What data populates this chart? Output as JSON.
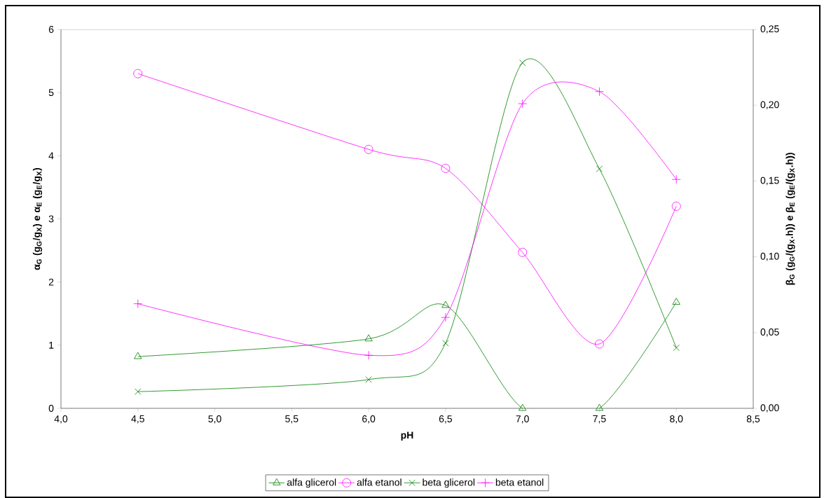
{
  "chart_data": {
    "type": "line",
    "xlabel": "pH",
    "ylabel": "**α$_{G}$ (g$_{G}$/g$_{X}$) e α$_{E}$ (g$_{E}$/g$_{X}$)**",
    "y2label": "**β$_{G}$ (g$_{G}$/(g$_{X}$.h)) e β$_{E}$ (g$_{E}$/(g$_{X}$.h))**",
    "x": [
      4.5,
      6.0,
      6.5,
      7.0,
      7.5,
      8.0
    ],
    "xlim": [
      4.0,
      8.5
    ],
    "xticks": [
      {
        "value": 4.0,
        "label": "4,0"
      },
      {
        "value": 4.5,
        "label": "4,5"
      },
      {
        "value": 5.0,
        "label": "5,0"
      },
      {
        "value": 5.5,
        "label": "5,5"
      },
      {
        "value": 6.0,
        "label": "6,0"
      },
      {
        "value": 6.5,
        "label": "6,5"
      },
      {
        "value": 7.0,
        "label": "7,0"
      },
      {
        "value": 7.5,
        "label": "7,5"
      },
      {
        "value": 8.0,
        "label": "8,0"
      },
      {
        "value": 8.5,
        "label": "8,5"
      }
    ],
    "ylim": [
      0,
      6
    ],
    "yticks": [
      0,
      1,
      2,
      3,
      4,
      5,
      6
    ],
    "y2lim": [
      0,
      0.25
    ],
    "y2ticks": [
      {
        "value": 0.0,
        "label": "0,00"
      },
      {
        "value": 0.05,
        "label": "0,05"
      },
      {
        "value": 0.1,
        "label": "0,10"
      },
      {
        "value": 0.15,
        "label": "0,15"
      },
      {
        "value": 0.2,
        "label": "0,20"
      },
      {
        "value": 0.25,
        "label": "0,25"
      }
    ],
    "grid": false,
    "legend": "bottom",
    "series": [
      {
        "name": "alfa glicerol",
        "color": "#008000",
        "marker": "triangle",
        "values": [
          0.82,
          1.1,
          1.63,
          0,
          0,
          1.68
        ]
      },
      {
        "name": "alfa etanol",
        "color": "#ff00ff",
        "marker": "circle",
        "values": [
          5.3,
          4.1,
          3.8,
          2.47,
          1.02,
          3.2
        ]
      },
      {
        "name": "beta glicerol",
        "color": "#008000",
        "marker": "cross",
        "axis": "y2",
        "values": [
          0.011,
          0.019,
          0.043,
          0.228,
          0.158,
          0.04
        ]
      },
      {
        "name": "beta etanol",
        "color": "#ff00ff",
        "marker": "plus",
        "axis": "y2",
        "values": [
          0.069,
          0.035,
          0.06,
          0.201,
          0.209,
          0.151
        ]
      }
    ]
  }
}
